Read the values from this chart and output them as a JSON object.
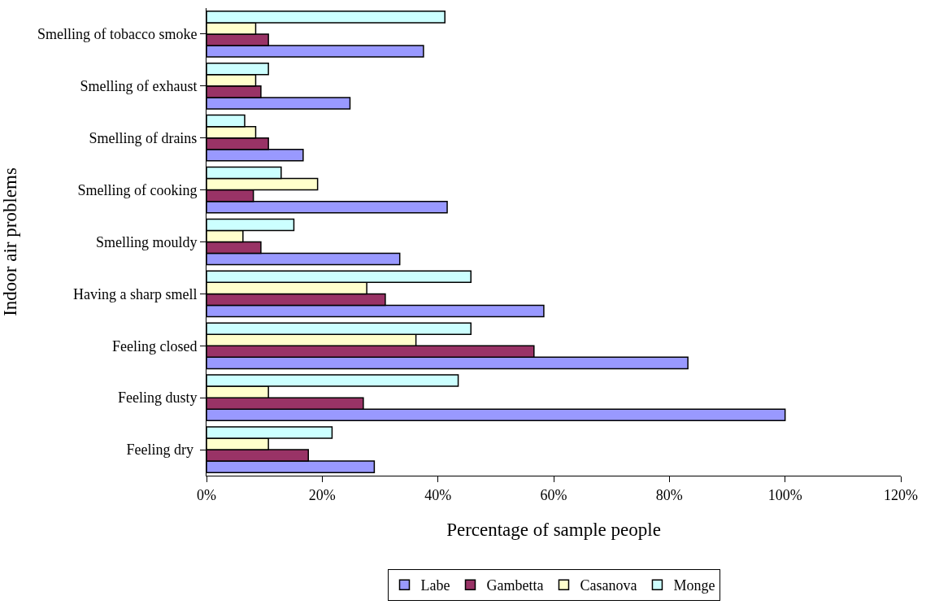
{
  "chart_data": {
    "type": "bar",
    "orientation": "horizontal",
    "xlabel": "Percentage of sample people",
    "ylabel": "Indoor air problems",
    "categories": [
      "Smelling of tobacco smoke",
      "Smelling of exhaust",
      "Smelling of drains",
      "Smelling of cooking",
      "Smelling mouldy",
      "Having a sharp smell",
      "Feeling closed",
      "Feeling dusty",
      "Feeling dry "
    ],
    "series": [
      {
        "name": "Labe",
        "color": "#9999ff",
        "values": [
          37.5,
          24.8,
          16.7,
          41.6,
          33.4,
          58.3,
          83.2,
          100,
          29.0
        ]
      },
      {
        "name": "Gambetta",
        "color": "#993366",
        "values": [
          10.7,
          9.4,
          10.7,
          8.1,
          9.4,
          30.9,
          56.6,
          27.1,
          17.6
        ]
      },
      {
        "name": "Casanova",
        "color": "#ffffcc",
        "values": [
          8.5,
          8.5,
          8.5,
          19.2,
          6.3,
          27.7,
          36.2,
          10.7,
          10.7
        ]
      },
      {
        "name": "Monge",
        "color": "#ccffff",
        "values": [
          41.2,
          10.7,
          6.6,
          12.9,
          15.1,
          45.7,
          45.7,
          43.5,
          21.7
        ]
      }
    ],
    "xlim": [
      0,
      120
    ],
    "xticks": [
      {
        "value": 0,
        "label": "0%"
      },
      {
        "value": 20,
        "label": "20%"
      },
      {
        "value": 40,
        "label": "40%"
      },
      {
        "value": 60,
        "label": "60%"
      },
      {
        "value": 80,
        "label": "80%"
      },
      {
        "value": 100,
        "label": "100%"
      },
      {
        "value": 120,
        "label": "120%"
      }
    ],
    "legend": "bottom"
  }
}
